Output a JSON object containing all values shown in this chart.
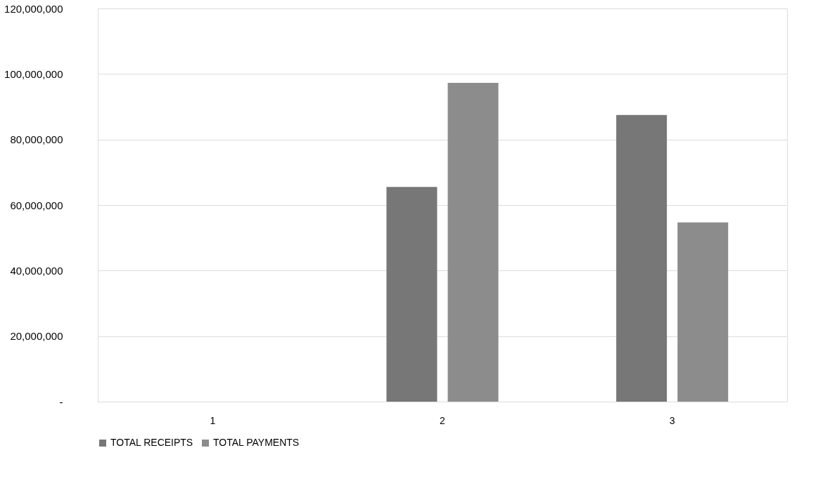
{
  "chart_data": {
    "type": "bar",
    "categories": [
      "1",
      "2",
      "3"
    ],
    "series": [
      {
        "name": "TOTAL RECEIPTS",
        "color": "#777777",
        "values": [
          null,
          65500000,
          87500000
        ]
      },
      {
        "name": "TOTAL PAYMENTS",
        "color": "#8c8c8c",
        "values": [
          null,
          97300000,
          54700000
        ]
      }
    ],
    "ylim": [
      0,
      120000000
    ],
    "yticks": [
      {
        "value": 0,
        "label": "-"
      },
      {
        "value": 20000000,
        "label": "20,000,000"
      },
      {
        "value": 40000000,
        "label": "40,000,000"
      },
      {
        "value": 60000000,
        "label": "60,000,000"
      },
      {
        "value": 80000000,
        "label": "80,000,000"
      },
      {
        "value": 100000000,
        "label": "100,000,000"
      },
      {
        "value": 120000000,
        "label": "120,000,000"
      }
    ],
    "grid": "y",
    "legend": "bottom"
  }
}
